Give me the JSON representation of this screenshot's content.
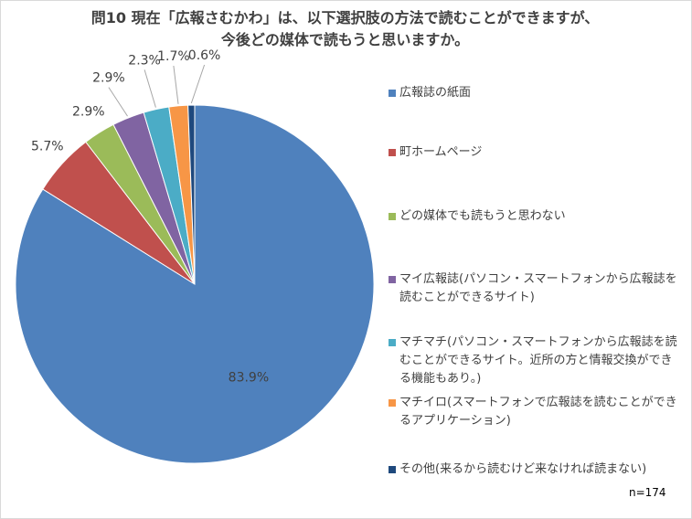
{
  "title": {
    "line1": "問10 現在「広報さむかわ」は、以下選択肢の方法で読むことができますが、",
    "line2": "今後どの媒体で読もうと思いますか。"
  },
  "sample_size": "n=174",
  "chart_data": {
    "type": "pie",
    "start_angle_deg": 0,
    "direction": "clockwise",
    "slices": [
      {
        "label": "広報誌の紙面",
        "value": 83.9,
        "display": "83.9%",
        "color": "#4f81bd"
      },
      {
        "label": "町ホームページ",
        "value": 5.7,
        "display": "5.7%",
        "color": "#c0504d"
      },
      {
        "label": "どの媒体でも読もうと思わない",
        "value": 2.9,
        "display": "2.9%",
        "color": "#9bbb59"
      },
      {
        "label": "マイ広報誌(パソコン・スマートフォンから広報誌を読むことができるサイト)",
        "value": 2.9,
        "display": "2.9%",
        "color": "#8064a2"
      },
      {
        "label": "マチマチ(パソコン・スマートフォンから広報誌を読むことができるサイト。近所の方と情報交換ができる機能もあり。)",
        "value": 2.3,
        "display": "2.3%",
        "color": "#4bacc6"
      },
      {
        "label": "マチイロ(スマートフォンで広報誌を読むことができるアプリケーション)",
        "value": 1.7,
        "display": "1.7%",
        "color": "#f79646"
      },
      {
        "label": "その他(来るから読むけど来なければ読まない)",
        "value": 0.6,
        "display": "0.6%",
        "color": "#1f497d"
      }
    ]
  }
}
